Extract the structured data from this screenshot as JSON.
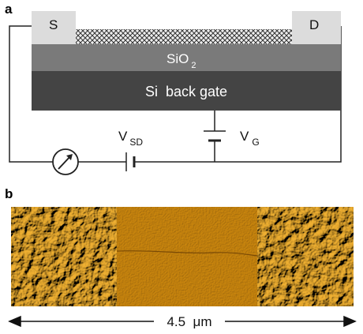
{
  "panel_a": {
    "label": "a",
    "source": "S",
    "drain": "D",
    "oxide": "SiO",
    "oxide_sub": "2",
    "gate": "Si  back gate",
    "vsd": "V",
    "vsd_sub": "SD",
    "vg": "V",
    "vg_sub": "G"
  },
  "panel_b": {
    "label": "b",
    "scale": "4.5  μm"
  }
}
